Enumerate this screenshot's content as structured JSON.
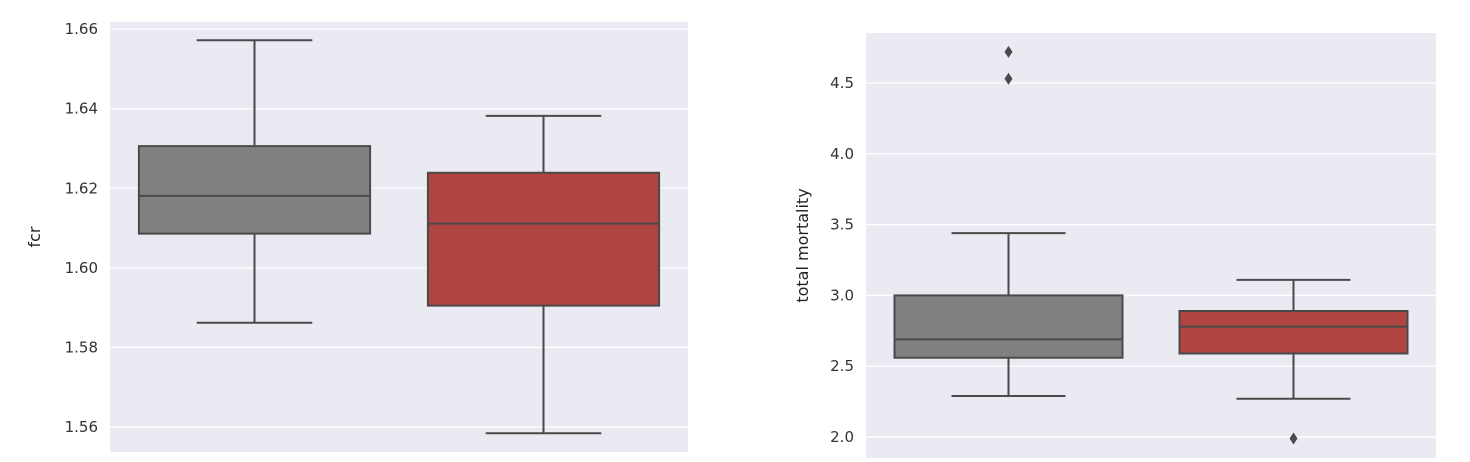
{
  "chart_data": [
    {
      "type": "box",
      "title": "",
      "xlabel": "",
      "ylabel": "fcr",
      "ylim": [
        1.5537,
        1.6618
      ],
      "yticks": [
        1.56,
        1.58,
        1.6,
        1.62,
        1.64,
        1.66
      ],
      "ytick_labels": [
        "1.56",
        "1.58",
        "1.60",
        "1.62",
        "1.64",
        "1.66"
      ],
      "grid": true,
      "boxes": [
        {
          "color": "#808080",
          "whisker_low": 1.5862,
          "q1": 1.6086,
          "median": 1.6181,
          "q3": 1.6306,
          "whisker_high": 1.6572,
          "outliers": []
        },
        {
          "color": "#b04440",
          "whisker_low": 1.5584,
          "q1": 1.5905,
          "median": 1.6111,
          "q3": 1.6239,
          "whisker_high": 1.6382,
          "outliers": []
        }
      ]
    },
    {
      "type": "box",
      "title": "",
      "xlabel": "",
      "ylabel": "total mortality",
      "ylim": [
        1.852,
        4.853
      ],
      "yticks": [
        2.0,
        2.5,
        3.0,
        3.5,
        4.0,
        4.5
      ],
      "ytick_labels": [
        "2.0",
        "2.5",
        "3.0",
        "3.5",
        "4.0",
        "4.5"
      ],
      "grid": true,
      "boxes": [
        {
          "color": "#808080",
          "whisker_low": 2.29,
          "q1": 2.56,
          "median": 2.69,
          "q3": 3.0,
          "whisker_high": 3.44,
          "outliers": [
            4.53,
            4.72
          ]
        },
        {
          "color": "#b04440",
          "whisker_low": 2.27,
          "q1": 2.59,
          "median": 2.78,
          "q3": 2.89,
          "whisker_high": 3.11,
          "outliers": [
            1.99
          ]
        }
      ]
    }
  ]
}
